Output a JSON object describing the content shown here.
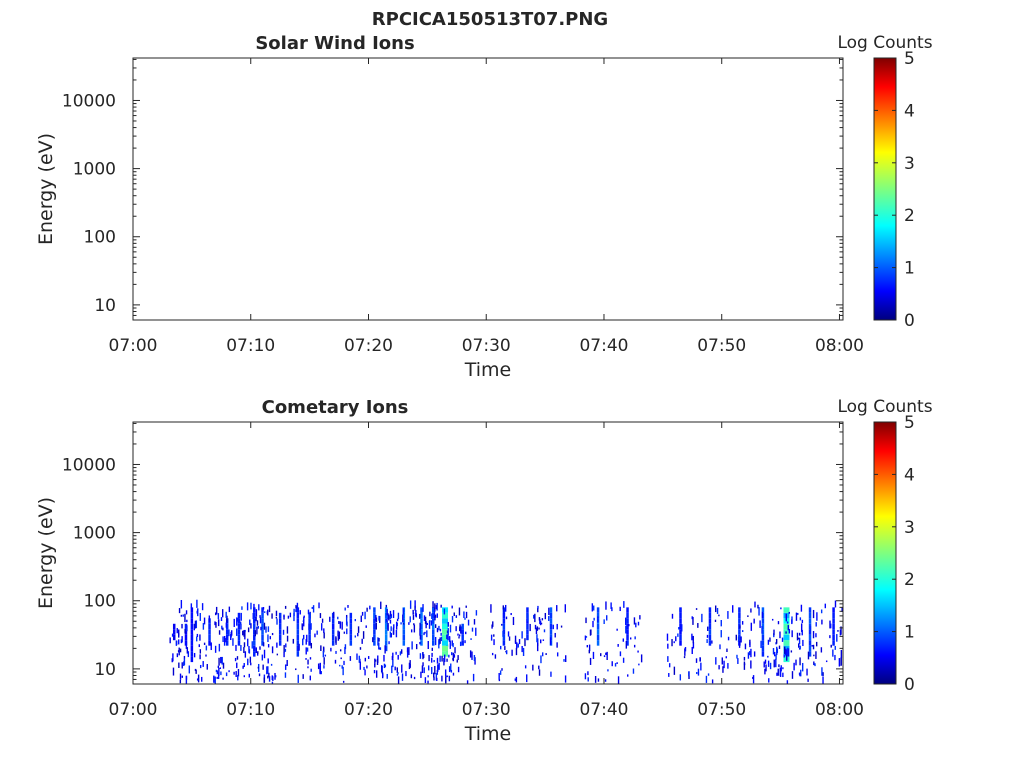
{
  "figure_title": "RPCICA150513T07.PNG",
  "colors": {
    "axis": "#262626",
    "background": "#ffffff",
    "plot_background": "#ffffff",
    "colormap": [
      "#00007f",
      "#0000ff",
      "#007fff",
      "#00ffff",
      "#7fff7f",
      "#ffff00",
      "#ff7f00",
      "#ff0000",
      "#7f0000"
    ]
  },
  "chart_data": [
    {
      "type": "heatmap",
      "title": "Solar Wind Ions",
      "xlabel": "Time",
      "ylabel": "Energy (eV)",
      "x_ticks": [
        "07:00",
        "07:10",
        "07:20",
        "07:30",
        "07:40",
        "07:50",
        "08:00"
      ],
      "x_range_minutes": [
        0,
        60.3
      ],
      "y_scale": "log",
      "y_ticks": [
        "10",
        "100",
        "1000",
        "10000"
      ],
      "y_range": [
        6,
        42000
      ],
      "colorbar": {
        "label": "Log Counts",
        "range": [
          0,
          5
        ],
        "ticks": [
          "0",
          "1",
          "2",
          "3",
          "4",
          "5"
        ]
      },
      "grid": false,
      "cells": []
    },
    {
      "type": "heatmap",
      "title": "Cometary Ions",
      "xlabel": "Time",
      "ylabel": "Energy (eV)",
      "x_ticks": [
        "07:00",
        "07:10",
        "07:20",
        "07:30",
        "07:40",
        "07:50",
        "08:00"
      ],
      "x_range_minutes": [
        0,
        60.3
      ],
      "y_scale": "log",
      "y_ticks": [
        "10",
        "100",
        "1000",
        "10000"
      ],
      "y_range": [
        6,
        42000
      ],
      "colorbar": {
        "label": "Log Counts",
        "range": [
          0,
          5
        ],
        "ticks": [
          "0",
          "1",
          "2",
          "3",
          "4",
          "5"
        ]
      },
      "grid": false,
      "observed_energy_range_eV": [
        6,
        80
      ],
      "observed_time_range": [
        "07:03",
        "08:00"
      ],
      "cells": [
        {
          "t": 3.5,
          "e_lo": 30,
          "e_hi": 45,
          "v": 0.2
        },
        {
          "t": 4.5,
          "e_lo": 28,
          "e_hi": 45,
          "v": 0.3
        },
        {
          "t": 5.0,
          "e_lo": 15,
          "e_hi": 70,
          "v": 0.3
        },
        {
          "t": 6.5,
          "e_lo": 28,
          "e_hi": 50,
          "v": 0.4
        },
        {
          "t": 8.0,
          "e_lo": 25,
          "e_hi": 55,
          "v": 0.4
        },
        {
          "t": 9.0,
          "e_lo": 25,
          "e_hi": 60,
          "v": 0.4
        },
        {
          "t": 10.3,
          "e_lo": 20,
          "e_hi": 80,
          "v": 0.5
        },
        {
          "t": 11.0,
          "e_lo": 25,
          "e_hi": 75,
          "v": 0.6
        },
        {
          "t": 12.5,
          "e_lo": 25,
          "e_hi": 65,
          "v": 0.4
        },
        {
          "t": 14.0,
          "e_lo": 20,
          "e_hi": 80,
          "v": 0.5
        },
        {
          "t": 15.0,
          "e_lo": 25,
          "e_hi": 60,
          "v": 0.4
        },
        {
          "t": 17.0,
          "e_lo": 25,
          "e_hi": 60,
          "v": 0.4
        },
        {
          "t": 18.5,
          "e_lo": 25,
          "e_hi": 60,
          "v": 0.5
        },
        {
          "t": 20.5,
          "e_lo": 25,
          "e_hi": 80,
          "v": 0.6
        },
        {
          "t": 21.5,
          "e_lo": 22,
          "e_hi": 80,
          "v": 0.8
        },
        {
          "t": 23.0,
          "e_lo": 25,
          "e_hi": 75,
          "v": 0.7
        },
        {
          "t": 24.5,
          "e_lo": 25,
          "e_hi": 75,
          "v": 0.7
        },
        {
          "t": 25.5,
          "e_lo": 25,
          "e_hi": 80,
          "v": 0.8
        },
        {
          "t": 26.5,
          "e_lo": 18,
          "e_hi": 80,
          "v": 1.8
        },
        {
          "t": 28.0,
          "e_lo": 25,
          "e_hi": 45,
          "v": 0.5
        },
        {
          "t": 31.5,
          "e_lo": 25,
          "e_hi": 80,
          "v": 0.5
        },
        {
          "t": 33.5,
          "e_lo": 30,
          "e_hi": 70,
          "v": 0.4
        },
        {
          "t": 35.5,
          "e_lo": 25,
          "e_hi": 80,
          "v": 0.6
        },
        {
          "t": 39.5,
          "e_lo": 25,
          "e_hi": 80,
          "v": 0.7
        },
        {
          "t": 42.0,
          "e_lo": 25,
          "e_hi": 70,
          "v": 0.4
        },
        {
          "t": 46.5,
          "e_lo": 25,
          "e_hi": 75,
          "v": 0.4
        },
        {
          "t": 49.0,
          "e_lo": 25,
          "e_hi": 80,
          "v": 0.5
        },
        {
          "t": 51.5,
          "e_lo": 25,
          "e_hi": 80,
          "v": 0.4
        },
        {
          "t": 53.5,
          "e_lo": 18,
          "e_hi": 80,
          "v": 0.6
        },
        {
          "t": 55.5,
          "e_lo": 15,
          "e_hi": 80,
          "v": 1.6
        },
        {
          "t": 57.5,
          "e_lo": 20,
          "e_hi": 80,
          "v": 0.6
        },
        {
          "t": 59.5,
          "e_lo": 25,
          "e_hi": 80,
          "v": 0.4
        }
      ]
    }
  ]
}
